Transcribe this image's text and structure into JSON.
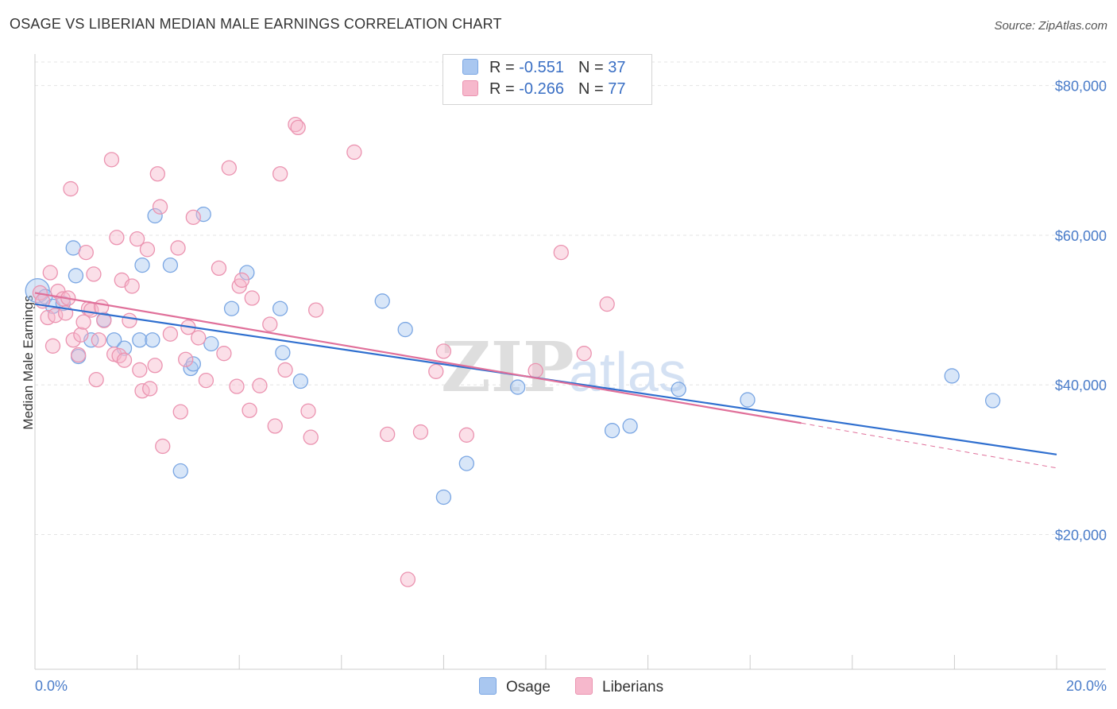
{
  "title": "OSAGE VS LIBERIAN MEDIAN MALE EARNINGS CORRELATION CHART",
  "source": "Source: ZipAtlas.com",
  "watermark": {
    "zip": "ZIP",
    "atlas": "atlas"
  },
  "colors": {
    "osage_fill": "#a9c7f0",
    "osage_stroke": "#7aa6e3",
    "osage_line": "#2f6fcf",
    "liberians_fill": "#f6b8cc",
    "liberians_stroke": "#eb93b0",
    "liberians_line": "#e0709a",
    "tick_label": "#4a7cc9",
    "grid": "#e4e4e4"
  },
  "legend": {
    "rows": [
      {
        "r_label": "R = ",
        "r_value": "-0.551",
        "n_label": "N = ",
        "n_value": "37"
      },
      {
        "r_label": "R = ",
        "r_value": "-0.266",
        "n_label": "N = ",
        "n_value": "77"
      }
    ]
  },
  "bottom_legend": [
    {
      "label": "Osage"
    },
    {
      "label": "Liberians"
    }
  ],
  "chart_data": {
    "type": "scatter",
    "title": "OSAGE VS LIBERIAN MEDIAN MALE EARNINGS CORRELATION CHART",
    "xlabel": "",
    "ylabel": "Median Male Earnings",
    "xlim": [
      0,
      20
    ],
    "ylim": [
      2000,
      84000
    ],
    "x_tick_labels": [
      {
        "value": 0,
        "label": "0.0%"
      },
      {
        "value": 20,
        "label": "20.0%"
      }
    ],
    "y_ticks": [
      {
        "value": 20000,
        "label": "$20,000"
      },
      {
        "value": 40000,
        "label": "$40,000"
      },
      {
        "value": 60000,
        "label": "$60,000"
      },
      {
        "value": 80000,
        "label": "$80,000"
      }
    ],
    "grid": "horizontal dashed",
    "legend_position": "top-center",
    "series": [
      {
        "name": "Osage",
        "r": -0.551,
        "n": 37,
        "trend": {
          "x": [
            0,
            20
          ],
          "y": [
            50800,
            30700
          ]
        },
        "points": [
          [
            0.05,
            52600
          ],
          [
            0.2,
            51800
          ],
          [
            0.35,
            50500
          ],
          [
            0.55,
            50900
          ],
          [
            0.75,
            58300
          ],
          [
            0.8,
            54600
          ],
          [
            0.85,
            43800
          ],
          [
            1.1,
            46000
          ],
          [
            1.35,
            48700
          ],
          [
            1.55,
            46000
          ],
          [
            1.75,
            44900
          ],
          [
            2.05,
            46000
          ],
          [
            2.1,
            56000
          ],
          [
            2.3,
            46000
          ],
          [
            2.35,
            62600
          ],
          [
            2.65,
            56000
          ],
          [
            2.85,
            28500
          ],
          [
            3.05,
            42200
          ],
          [
            3.1,
            42800
          ],
          [
            3.3,
            62800
          ],
          [
            3.45,
            45500
          ],
          [
            3.85,
            50200
          ],
          [
            4.15,
            55000
          ],
          [
            4.8,
            50200
          ],
          [
            4.85,
            44300
          ],
          [
            5.2,
            40500
          ],
          [
            6.8,
            51200
          ],
          [
            7.25,
            47400
          ],
          [
            8.0,
            25000
          ],
          [
            8.45,
            29500
          ],
          [
            9.45,
            39700
          ],
          [
            11.3,
            33900
          ],
          [
            11.65,
            34500
          ],
          [
            12.6,
            39400
          ],
          [
            13.95,
            38000
          ],
          [
            17.95,
            41200
          ],
          [
            18.75,
            37900
          ]
        ]
      },
      {
        "name": "Liberians",
        "r": -0.266,
        "n": 77,
        "trend": {
          "x": [
            0,
            15
          ],
          "y": [
            52300,
            34900
          ]
        },
        "trend_dashed": {
          "x": [
            15,
            20
          ],
          "y": [
            34900,
            28900
          ]
        },
        "points": [
          [
            0.1,
            52300
          ],
          [
            0.15,
            51200
          ],
          [
            0.25,
            49000
          ],
          [
            0.3,
            55000
          ],
          [
            0.35,
            45200
          ],
          [
            0.4,
            49300
          ],
          [
            0.45,
            52500
          ],
          [
            0.55,
            51500
          ],
          [
            0.6,
            49600
          ],
          [
            0.65,
            51600
          ],
          [
            0.7,
            66200
          ],
          [
            0.75,
            46000
          ],
          [
            0.85,
            44000
          ],
          [
            0.9,
            46700
          ],
          [
            0.95,
            48400
          ],
          [
            1.0,
            57700
          ],
          [
            1.05,
            50200
          ],
          [
            1.1,
            50000
          ],
          [
            1.15,
            54800
          ],
          [
            1.2,
            40700
          ],
          [
            1.25,
            46000
          ],
          [
            1.3,
            50400
          ],
          [
            1.35,
            48600
          ],
          [
            1.5,
            70100
          ],
          [
            1.55,
            44100
          ],
          [
            1.6,
            59700
          ],
          [
            1.65,
            43900
          ],
          [
            1.7,
            54000
          ],
          [
            1.75,
            43300
          ],
          [
            1.85,
            48600
          ],
          [
            1.9,
            53200
          ],
          [
            2.0,
            59500
          ],
          [
            2.05,
            42000
          ],
          [
            2.1,
            39200
          ],
          [
            2.2,
            58100
          ],
          [
            2.25,
            39500
          ],
          [
            2.35,
            42600
          ],
          [
            2.4,
            68200
          ],
          [
            2.45,
            63800
          ],
          [
            2.5,
            31800
          ],
          [
            2.65,
            46800
          ],
          [
            2.8,
            58300
          ],
          [
            2.85,
            36400
          ],
          [
            2.95,
            43400
          ],
          [
            3.0,
            47700
          ],
          [
            3.1,
            62400
          ],
          [
            3.2,
            46300
          ],
          [
            3.35,
            40600
          ],
          [
            3.6,
            55600
          ],
          [
            3.7,
            44200
          ],
          [
            3.8,
            69000
          ],
          [
            3.95,
            39800
          ],
          [
            4.0,
            53200
          ],
          [
            4.05,
            54000
          ],
          [
            4.2,
            36600
          ],
          [
            4.25,
            51600
          ],
          [
            4.4,
            39900
          ],
          [
            4.6,
            48100
          ],
          [
            4.7,
            34500
          ],
          [
            4.8,
            68200
          ],
          [
            4.9,
            42000
          ],
          [
            5.1,
            74800
          ],
          [
            5.15,
            74400
          ],
          [
            5.35,
            36500
          ],
          [
            5.4,
            33000
          ],
          [
            5.5,
            50000
          ],
          [
            6.25,
            71100
          ],
          [
            6.9,
            33400
          ],
          [
            7.3,
            14000
          ],
          [
            7.55,
            33700
          ],
          [
            7.85,
            41800
          ],
          [
            8.0,
            44500
          ],
          [
            8.45,
            33300
          ],
          [
            9.8,
            41900
          ],
          [
            10.3,
            57700
          ],
          [
            10.75,
            44200
          ],
          [
            11.2,
            50800
          ]
        ]
      }
    ]
  }
}
